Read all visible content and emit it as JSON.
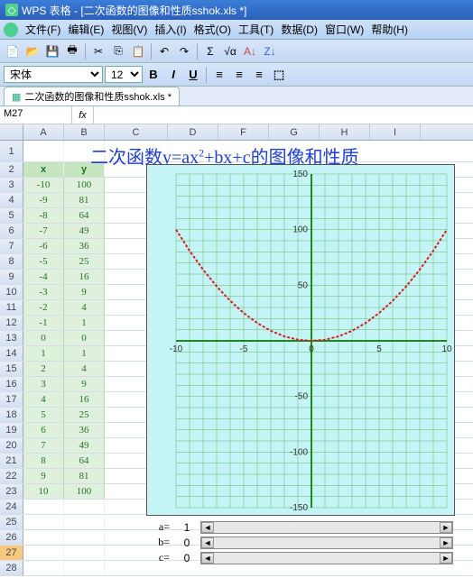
{
  "title": "WPS 表格 - [二次函数的图像和性质sshok.xls *]",
  "menu": [
    "文件(F)",
    "编辑(E)",
    "视图(V)",
    "插入(I)",
    "格式(O)",
    "工具(T)",
    "数据(D)",
    "窗口(W)",
    "帮助(H)"
  ],
  "font": {
    "name": "宋体",
    "size": "12"
  },
  "tab": {
    "label": "二次函数的图像和性质sshok.xls *"
  },
  "formula": {
    "name_box": "M27",
    "fx": "fx"
  },
  "columns": [
    "A",
    "B",
    "C",
    "D",
    "F",
    "G",
    "H",
    "I"
  ],
  "chart_title_parts": {
    "p1": "二次函数y=ax",
    "sup": "2",
    "p2": "+bx+c的图像和性质"
  },
  "table": {
    "headers": {
      "x": "x",
      "y": "y"
    },
    "rows": [
      {
        "x": "-10",
        "y": "100"
      },
      {
        "x": "-9",
        "y": "81"
      },
      {
        "x": "-8",
        "y": "64"
      },
      {
        "x": "-7",
        "y": "49"
      },
      {
        "x": "-6",
        "y": "36"
      },
      {
        "x": "-5",
        "y": "25"
      },
      {
        "x": "-4",
        "y": "16"
      },
      {
        "x": "-3",
        "y": "9"
      },
      {
        "x": "-2",
        "y": "4"
      },
      {
        "x": "-1",
        "y": "1"
      },
      {
        "x": "0",
        "y": "0"
      },
      {
        "x": "1",
        "y": "1"
      },
      {
        "x": "2",
        "y": "4"
      },
      {
        "x": "3",
        "y": "9"
      },
      {
        "x": "4",
        "y": "16"
      },
      {
        "x": "5",
        "y": "25"
      },
      {
        "x": "6",
        "y": "36"
      },
      {
        "x": "7",
        "y": "49"
      },
      {
        "x": "8",
        "y": "64"
      },
      {
        "x": "9",
        "y": "81"
      },
      {
        "x": "10",
        "y": "100"
      }
    ]
  },
  "chart": {
    "type": "line",
    "background_color": "#c5f4f7",
    "grid_color": "#63b863",
    "axis_color": "#1a8a1a",
    "curve_color": "#d42020",
    "xlim": [
      -10,
      10
    ],
    "ylim": [
      -150,
      150
    ],
    "xticks": [
      -10,
      -5,
      0,
      5,
      10
    ],
    "yticks": [
      -150,
      -100,
      -50,
      0,
      50,
      100,
      150
    ],
    "x": [
      -10,
      -9,
      -8,
      -7,
      -6,
      -5,
      -4,
      -3,
      -2,
      -1,
      0,
      1,
      2,
      3,
      4,
      5,
      6,
      7,
      8,
      9,
      10
    ],
    "y": [
      100,
      81,
      64,
      49,
      36,
      25,
      16,
      9,
      4,
      1,
      0,
      1,
      4,
      9,
      16,
      25,
      36,
      49,
      64,
      81,
      100
    ]
  },
  "sliders": {
    "a": {
      "label": "a=",
      "value": "1"
    },
    "b": {
      "label": "b=",
      "value": "0"
    },
    "c": {
      "label": "c=",
      "value": "0"
    }
  },
  "row_numbers": [
    "1",
    "2",
    "3",
    "4",
    "5",
    "6",
    "7",
    "8",
    "9",
    "10",
    "11",
    "12",
    "13",
    "14",
    "15",
    "16",
    "17",
    "18",
    "19",
    "20",
    "21",
    "22",
    "23",
    "24",
    "25",
    "26",
    "27",
    "28"
  ]
}
